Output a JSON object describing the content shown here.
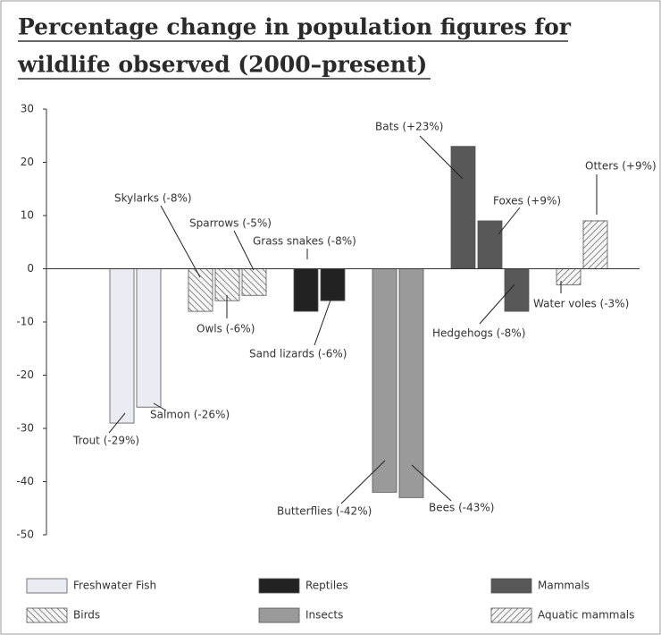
{
  "chart_data": {
    "type": "bar",
    "title": [
      "Percentage change in population figures for",
      "wildlife observed (2000–present)"
    ],
    "ylim": [
      -50,
      30
    ],
    "yticks": [
      30,
      20,
      10,
      0,
      -10,
      -20,
      -30,
      -40,
      -50
    ],
    "grid": false,
    "legend": "bottom",
    "series": [
      {
        "name": "Freshwater Fish",
        "color": "#ebebf3",
        "values": [
          -29,
          -26
        ],
        "value_labels": [
          "Trout (-29%)",
          "Salmon (-26%)"
        ]
      },
      {
        "name": "Birds",
        "color": "#f4f4f4",
        "hatch": "backward",
        "values": [
          -8,
          -6,
          -5
        ],
        "value_labels": [
          "Skylarks (-8%)",
          "Owls (-6%)",
          "Sparrows (-5%)"
        ]
      },
      {
        "name": "Reptiles",
        "color": "#222222",
        "values": [
          -8,
          -6
        ],
        "value_labels": [
          "Grass snakes (-8%)",
          "Sand lizards (-6%)"
        ]
      },
      {
        "name": "Insects",
        "color": "#9a9a9a",
        "values": [
          -42,
          -43
        ],
        "value_labels": [
          "Butterflies (-42%)",
          "Bees (-43%)"
        ]
      },
      {
        "name": "Mammals",
        "color": "#585858",
        "values": [
          23,
          9,
          -8
        ],
        "value_labels": [
          "Bats (+23%)",
          "Foxes (+9%)",
          "Hedgehogs (-8%)"
        ]
      },
      {
        "name": "Aquatic mammals",
        "color": "#f4f4f4",
        "hatch": "forward",
        "values": [
          -3,
          9
        ],
        "value_labels": [
          "Water voles (-3%)",
          "Otters (+9%)"
        ]
      }
    ]
  }
}
